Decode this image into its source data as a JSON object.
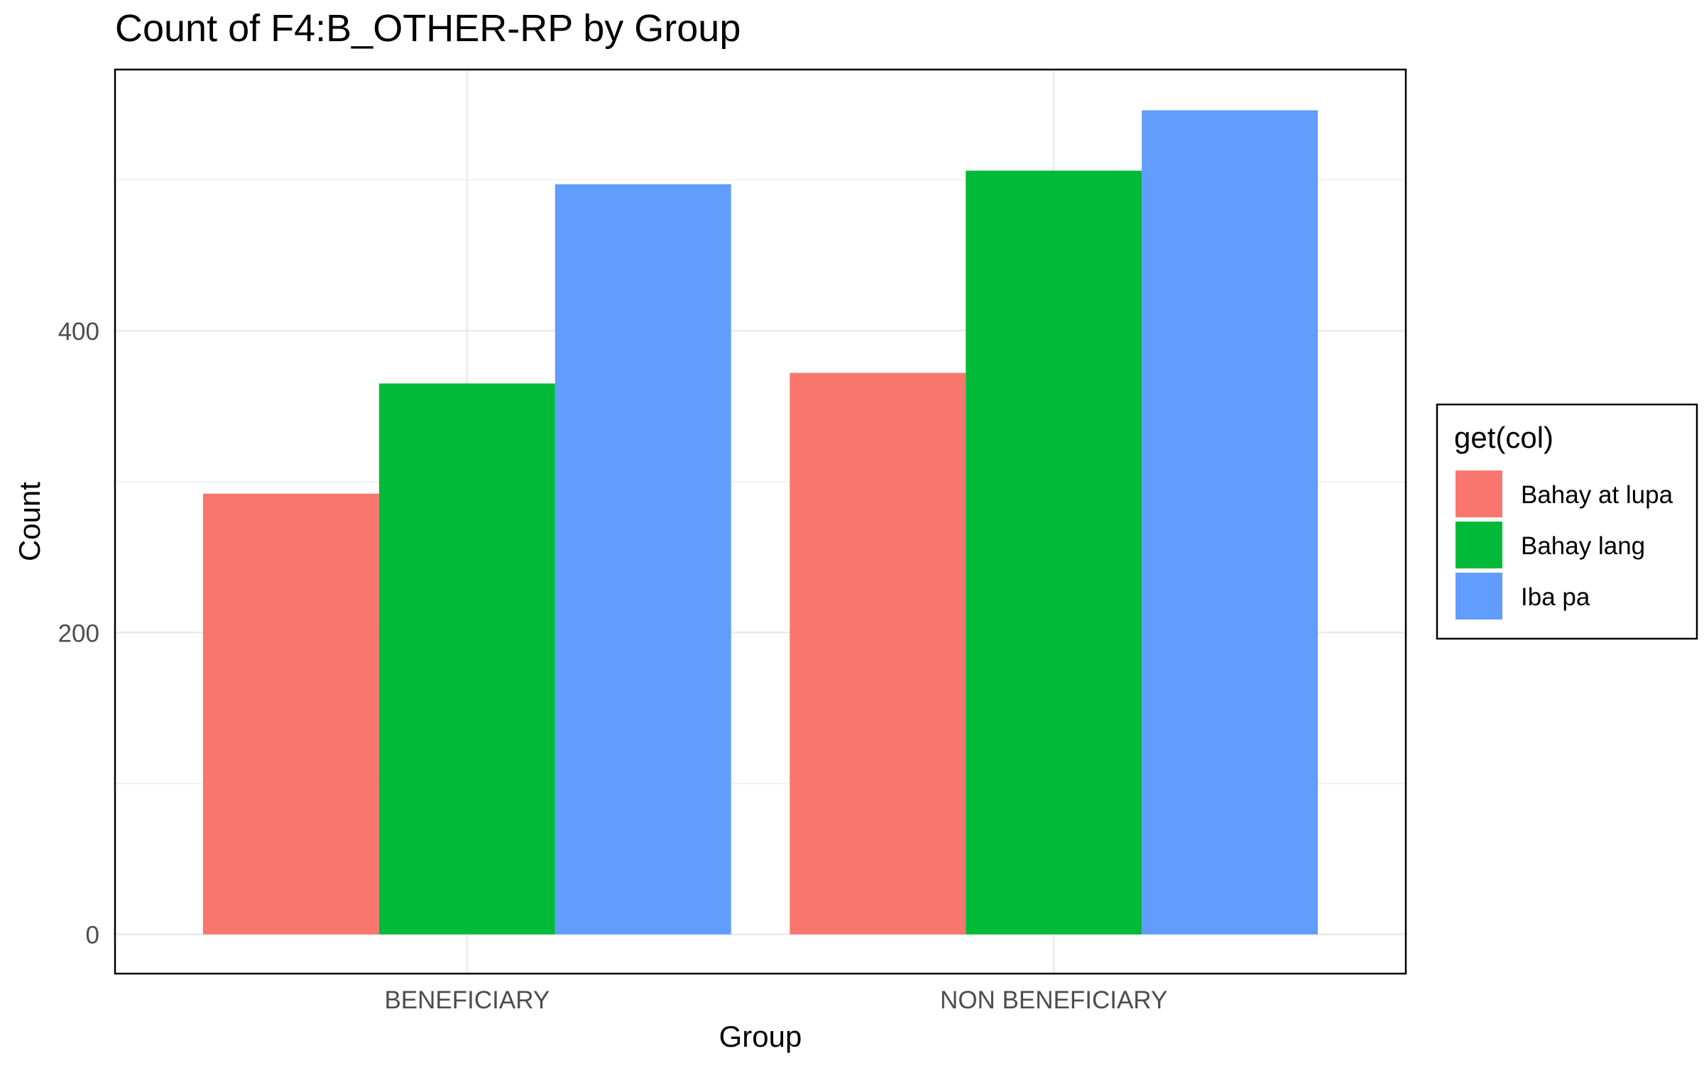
{
  "chart_data": {
    "type": "bar",
    "title": "Count of F4:B_OTHER-RP by Group",
    "xlabel": "Group",
    "ylabel": "Count",
    "categories": [
      "BENEFICIARY",
      "NON BENEFICIARY"
    ],
    "series": [
      {
        "name": "Bahay at lupa",
        "color": "#F8766D",
        "values": [
          292,
          372
        ]
      },
      {
        "name": "Bahay lang",
        "color": "#00BA38",
        "values": [
          365,
          506
        ]
      },
      {
        "name": "Iba pa",
        "color": "#619CFF",
        "values": [
          497,
          546
        ]
      }
    ],
    "ylim": [
      -26,
      573
    ],
    "yticks": [
      0,
      200,
      400
    ],
    "grid": true,
    "legend": {
      "title": "get(col)",
      "position": "right"
    }
  }
}
